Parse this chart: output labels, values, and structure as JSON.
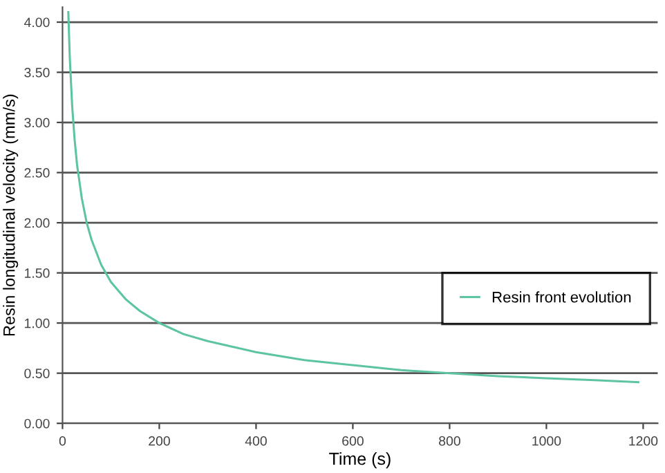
{
  "chart_data": {
    "type": "line",
    "xlabel": "Time (s)",
    "ylabel": "Resin longitudinal velocity (mm/s)",
    "xlim": [
      0,
      1230
    ],
    "xticks": [
      0,
      200,
      400,
      600,
      800,
      1000,
      1200
    ],
    "ylim": [
      0,
      4.15
    ],
    "yticks": [
      {
        "value": 0,
        "label": "0.00"
      },
      {
        "value": 0.5,
        "label": "0.50"
      },
      {
        "value": 1,
        "label": "1.00"
      },
      {
        "value": 1.5,
        "label": "1.50"
      },
      {
        "value": 2,
        "label": "2.00"
      },
      {
        "value": 2.5,
        "label": "2.50"
      },
      {
        "value": 3,
        "label": "3.00"
      },
      {
        "value": 3.5,
        "label": "3.50"
      },
      {
        "value": 4,
        "label": "4.00"
      }
    ],
    "grid": "y",
    "legend": "right",
    "marker": "none",
    "line_style": "solid",
    "series": [
      {
        "name": "Resin front evolution",
        "color": "#5cc4a0",
        "x": [
          12,
          15,
          20,
          25,
          30,
          40,
          50,
          60,
          80,
          100,
          130,
          160,
          200,
          250,
          300,
          400,
          500,
          600,
          700,
          800,
          900,
          1000,
          1100,
          1190
        ],
        "values": [
          4.1,
          3.65,
          3.16,
          2.83,
          2.58,
          2.24,
          2.0,
          1.83,
          1.58,
          1.41,
          1.24,
          1.12,
          1.0,
          0.89,
          0.82,
          0.71,
          0.63,
          0.58,
          0.53,
          0.5,
          0.47,
          0.45,
          0.43,
          0.41
        ]
      }
    ]
  }
}
